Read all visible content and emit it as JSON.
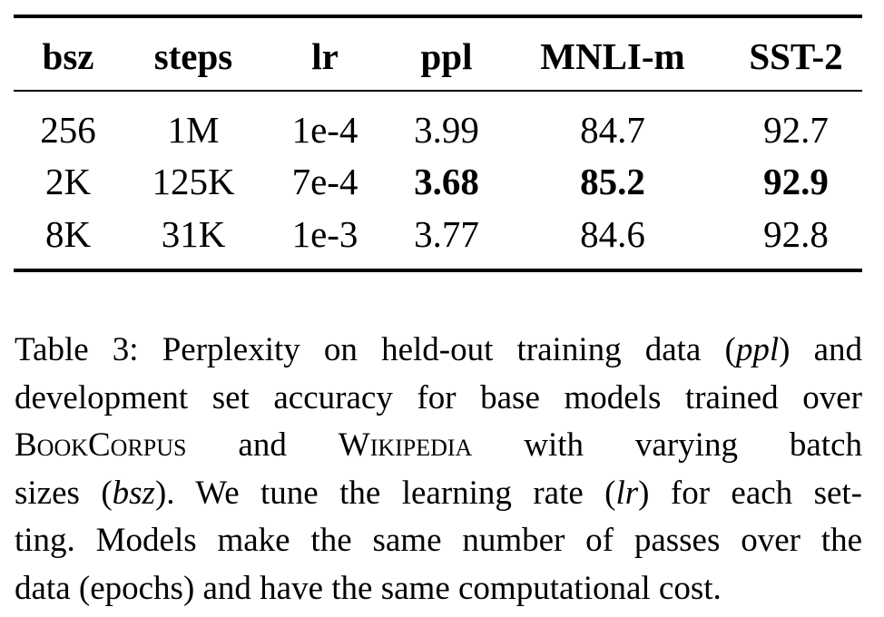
{
  "table": {
    "header": [
      "bsz",
      "steps",
      "lr",
      "ppl",
      "MNLI-m",
      "SST-2"
    ],
    "rows": [
      [
        "256",
        "1M",
        "1e-4",
        "3.99",
        "84.7",
        "92.7"
      ],
      [
        "2K",
        "125K",
        "7e-4",
        "3.68",
        "85.2",
        "92.9"
      ],
      [
        "8K",
        "31K",
        "1e-3",
        "3.77",
        "84.6",
        "92.8"
      ]
    ],
    "bold_cells": [
      [
        1,
        3
      ],
      [
        1,
        4
      ],
      [
        1,
        5
      ]
    ]
  },
  "caption": {
    "lines": [
      [
        "Table 3: Perplexity on held-out training data (",
        {
          "text": "ppl",
          "style": "italic"
        },
        ") and"
      ],
      [
        "development set accuracy for base models trained over"
      ],
      [
        {
          "text": "BookCorpus",
          "style": "smallcaps"
        },
        " and ",
        {
          "text": "Wikipedia",
          "style": "smallcaps"
        },
        " with varying batch"
      ],
      [
        "sizes (",
        {
          "text": "bsz",
          "style": "italic"
        },
        "). We tune the learning rate (",
        {
          "text": "lr",
          "style": "italic"
        },
        ") for each set-"
      ],
      [
        "ting. Models make the same number of passes over the"
      ],
      [
        "data (epochs) and have the same computational cost."
      ]
    ]
  }
}
